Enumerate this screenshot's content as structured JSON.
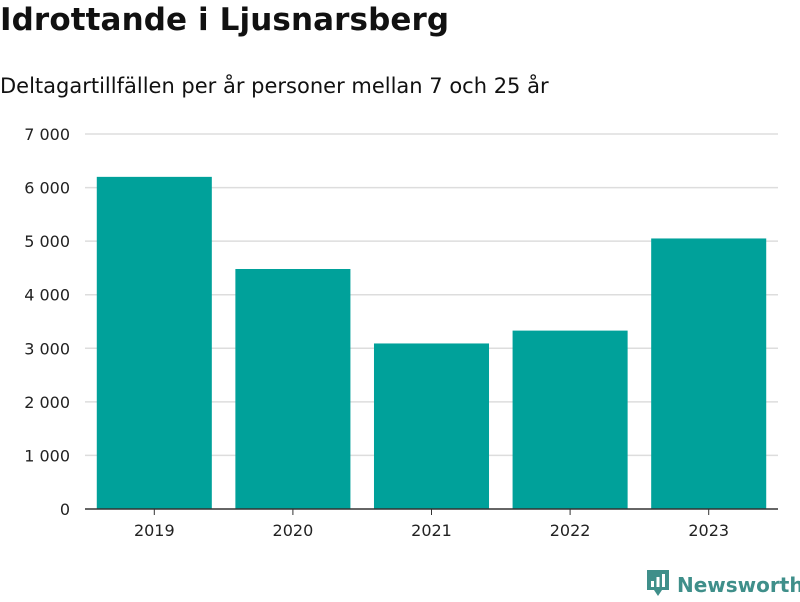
{
  "header": {
    "title": "Idrottande i Ljusnarsberg",
    "subtitle": "Deltagartillfällen per år personer mellan 7 och 25 år"
  },
  "brand": {
    "name": "Newsworthy",
    "icon": "newsworthy-logo-icon",
    "color": "#3f8f8a"
  },
  "chart_data": {
    "type": "bar",
    "categories": [
      "2019",
      "2020",
      "2021",
      "2022",
      "2023"
    ],
    "values": [
      6200,
      4480,
      3090,
      3330,
      5050
    ],
    "ylim": [
      0,
      7000
    ],
    "yticks": [
      0,
      1000,
      2000,
      3000,
      4000,
      5000,
      6000,
      7000
    ],
    "ytick_labels": [
      "0",
      "1 000",
      "2 000",
      "3 000",
      "4 000",
      "5 000",
      "6 000",
      "7 000"
    ],
    "grid": true,
    "legend": "none",
    "bar_color": "#00a19a"
  }
}
